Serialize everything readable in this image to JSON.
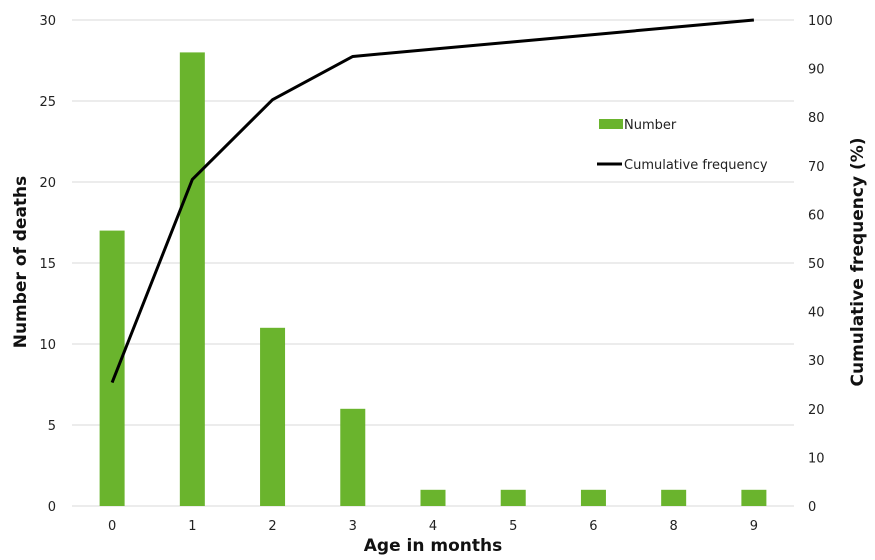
{
  "chart_data": {
    "type": "bar",
    "categories": [
      "0",
      "1",
      "2",
      "3",
      "4",
      "5",
      "6",
      "8",
      "9"
    ],
    "series": [
      {
        "name": "Number",
        "type": "bar",
        "axis": "left",
        "color": "#6ab42d",
        "values": [
          17,
          28,
          11,
          6,
          1,
          1,
          1,
          1,
          1
        ]
      },
      {
        "name": "Cumulative frequency",
        "type": "line",
        "axis": "right",
        "color": "#000000",
        "values": [
          25.4,
          67.2,
          83.6,
          92.5,
          94.0,
          95.5,
          97.0,
          98.5,
          100
        ]
      }
    ],
    "xlabel": "Age in months",
    "ylabel": "Number of deaths",
    "y2label": "Cumulative frequency (%)",
    "ylim": [
      0,
      30
    ],
    "yticks": [
      "0",
      "5",
      "10",
      "15",
      "20",
      "25",
      "30"
    ],
    "y2lim": [
      0,
      100
    ],
    "y2ticks": [
      "0",
      "10",
      "20",
      "30",
      "40",
      "50",
      "60",
      "70",
      "80",
      "90",
      "100"
    ],
    "grid": true,
    "legend_position": "right, inside plot",
    "legend": [
      "Number",
      "Cumulative frequency"
    ]
  }
}
